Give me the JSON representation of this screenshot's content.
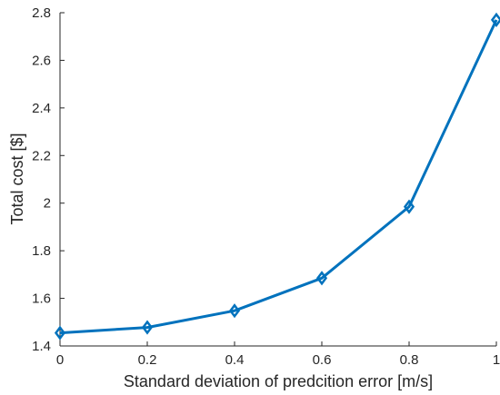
{
  "chart_data": {
    "type": "line",
    "title": "",
    "xlabel": "Standard deviation of predcition error [m/s]",
    "ylabel": "Total cost [$]",
    "xlim": [
      0,
      1
    ],
    "ylim": [
      1.4,
      2.8
    ],
    "x_ticks": [
      0,
      0.2,
      0.4,
      0.6,
      0.8,
      1
    ],
    "x_tick_labels": [
      "0",
      "0.2",
      "0.4",
      "0.6",
      "0.8",
      "1"
    ],
    "y_ticks": [
      1.4,
      1.6,
      1.8,
      2.0,
      2.2,
      2.4,
      2.6,
      2.8
    ],
    "y_tick_labels": [
      "1.4",
      "1.6",
      "1.8",
      "2",
      "2.2",
      "2.4",
      "2.6",
      "2.8"
    ],
    "grid": false,
    "legend": "none",
    "series": [
      {
        "color": "#0072BD",
        "marker": "diamond",
        "x": [
          0,
          0.2,
          0.4,
          0.6,
          0.8,
          1
        ],
        "y": [
          1.455,
          1.478,
          1.548,
          1.685,
          1.985,
          2.77
        ]
      }
    ]
  }
}
